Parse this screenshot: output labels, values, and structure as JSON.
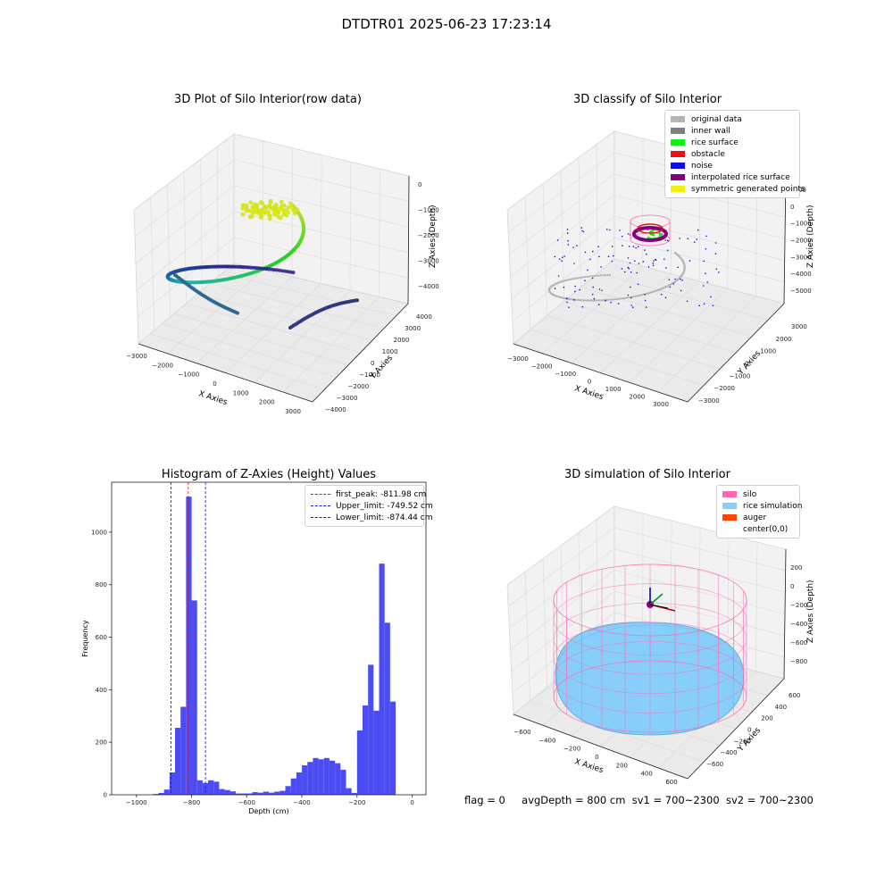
{
  "suptitle": "DTDTR01 2025-06-23 17:23:14",
  "colors": {
    "hist_bar": "#4c4cf5",
    "first_peak": "#e01010",
    "limit_line": "#1010d0",
    "original": "#b4b4b4",
    "inner_wall": "#808080",
    "rice_surface": "#10f010",
    "obstacle": "#f01010",
    "noise": "#1010e0",
    "interpolated": "#800080",
    "symmetric": "#f0f010",
    "silo": "#ff69b4",
    "rice_sim": "#87cefa",
    "auger": "#ff4500"
  },
  "plot1": {
    "title": "3D Plot of Silo Interior(row data)",
    "xlabel": "X Axies",
    "ylabel": "Y Axies",
    "zlabel": "Z Axies (Depth)",
    "xticks": [
      "−3000",
      "−2000",
      "−1000",
      "0",
      "1000",
      "2000",
      "3000"
    ],
    "yticks": [
      "−4000",
      "−3000",
      "−2000",
      "−1000",
      "0",
      "1000",
      "2000",
      "3000",
      "4000"
    ],
    "zticks": [
      "0",
      "−1000",
      "−2000",
      "−3000",
      "−4000"
    ]
  },
  "plot2": {
    "title": "3D classify of Silo Interior",
    "xlabel": "X Axies",
    "ylabel": "Y Axies",
    "zlabel": "Z Axies (Depth)",
    "xticks": [
      "−3000",
      "−2000",
      "−1000",
      "0",
      "1000",
      "2000",
      "3000"
    ],
    "yticks": [
      "−3000",
      "−2000",
      "−1000",
      "0",
      "1000",
      "2000",
      "3000"
    ],
    "zticks": [
      "1000",
      "0",
      "−1000",
      "−2000",
      "−3000",
      "−4000",
      "−5000"
    ],
    "legend": [
      {
        "label": "original data",
        "color": "#b4b4b4"
      },
      {
        "label": "inner wall",
        "color": "#808080"
      },
      {
        "label": "rice surface",
        "color": "#10f010"
      },
      {
        "label": "obstacle",
        "color": "#f01010"
      },
      {
        "label": "noise",
        "color": "#1010e0"
      },
      {
        "label": "interpolated rice surface",
        "color": "#800080"
      },
      {
        "label": "symmetric generated points",
        "color": "#f0f010"
      }
    ]
  },
  "plot3": {
    "title": "Histogram of Z-Axies (Height) Values",
    "xlabel": "Depth (cm)",
    "ylabel": "Frequency",
    "legend": [
      {
        "label": "first_peak: -811.98 cm",
        "color": "#e01010"
      },
      {
        "label": "Upper_limit: -749.52 cm",
        "color": "#1010d0"
      },
      {
        "label": "Lower_limit: -874.44 cm",
        "color": "#1010d0"
      }
    ]
  },
  "plot4": {
    "title": "3D simulation of Silo Interior",
    "xlabel": "X Axies",
    "ylabel": "Y Axies",
    "zlabel": "Z Axies (Depth)",
    "xticks": [
      "−600",
      "−400",
      "−200",
      "0",
      "200",
      "400",
      "600"
    ],
    "yticks": [
      "−600",
      "−400",
      "−200",
      "0",
      "200",
      "400",
      "600"
    ],
    "zticks": [
      "200",
      "0",
      "−200",
      "−400",
      "−600",
      "−800"
    ],
    "legend": [
      {
        "label": "silo",
        "color": "#ff69b4"
      },
      {
        "label": "rice simulation",
        "color": "#87cefa"
      },
      {
        "label": "auger",
        "color": "#ff4500"
      },
      {
        "label": "center(0,0)",
        "color": ""
      }
    ]
  },
  "status": {
    "flag": "flag = 0",
    "avg": "avgDepth = 800 cm",
    "sv1": "sv1 = 700~2300",
    "sv2": "sv2 = 700~2300"
  },
  "chart_data": {
    "type": "bar",
    "title": "Histogram of Z-Axies (Height) Values",
    "xlabel": "Depth (cm)",
    "ylabel": "Frequency",
    "xlim": [
      -1090,
      50
    ],
    "ylim": [
      0,
      1190
    ],
    "xticks": [
      -1000,
      -800,
      -600,
      -400,
      -200,
      0
    ],
    "yticks": [
      0,
      200,
      400,
      600,
      800,
      1000
    ],
    "bin_width": 20,
    "bins": [
      {
        "x": -940,
        "y": 3
      },
      {
        "x": -920,
        "y": 7
      },
      {
        "x": -900,
        "y": 20
      },
      {
        "x": -880,
        "y": 85
      },
      {
        "x": -860,
        "y": 255
      },
      {
        "x": -840,
        "y": 335
      },
      {
        "x": -820,
        "y": 1135
      },
      {
        "x": -800,
        "y": 740
      },
      {
        "x": -780,
        "y": 55
      },
      {
        "x": -760,
        "y": 45
      },
      {
        "x": -740,
        "y": 55
      },
      {
        "x": -720,
        "y": 50
      },
      {
        "x": -700,
        "y": 22
      },
      {
        "x": -680,
        "y": 18
      },
      {
        "x": -660,
        "y": 13
      },
      {
        "x": -640,
        "y": 5
      },
      {
        "x": -620,
        "y": 5
      },
      {
        "x": -600,
        "y": 5
      },
      {
        "x": -580,
        "y": 10
      },
      {
        "x": -560,
        "y": 8
      },
      {
        "x": -540,
        "y": 12
      },
      {
        "x": -520,
        "y": 8
      },
      {
        "x": -500,
        "y": 12
      },
      {
        "x": -480,
        "y": 15
      },
      {
        "x": -460,
        "y": 33
      },
      {
        "x": -440,
        "y": 62
      },
      {
        "x": -420,
        "y": 85
      },
      {
        "x": -400,
        "y": 112
      },
      {
        "x": -380,
        "y": 125
      },
      {
        "x": -360,
        "y": 140
      },
      {
        "x": -340,
        "y": 135
      },
      {
        "x": -320,
        "y": 140
      },
      {
        "x": -300,
        "y": 130
      },
      {
        "x": -280,
        "y": 120
      },
      {
        "x": -260,
        "y": 95
      },
      {
        "x": -240,
        "y": 25
      },
      {
        "x": -220,
        "y": 7
      },
      {
        "x": -200,
        "y": 245
      },
      {
        "x": -180,
        "y": 340
      },
      {
        "x": -160,
        "y": 495
      },
      {
        "x": -140,
        "y": 320
      },
      {
        "x": -120,
        "y": 880
      },
      {
        "x": -100,
        "y": 655
      },
      {
        "x": -80,
        "y": 355
      }
    ],
    "vlines": [
      {
        "name": "first_peak",
        "x": -811.98
      },
      {
        "name": "Upper_limit",
        "x": -749.52
      },
      {
        "name": "Lower_limit",
        "x": -874.44
      }
    ]
  }
}
